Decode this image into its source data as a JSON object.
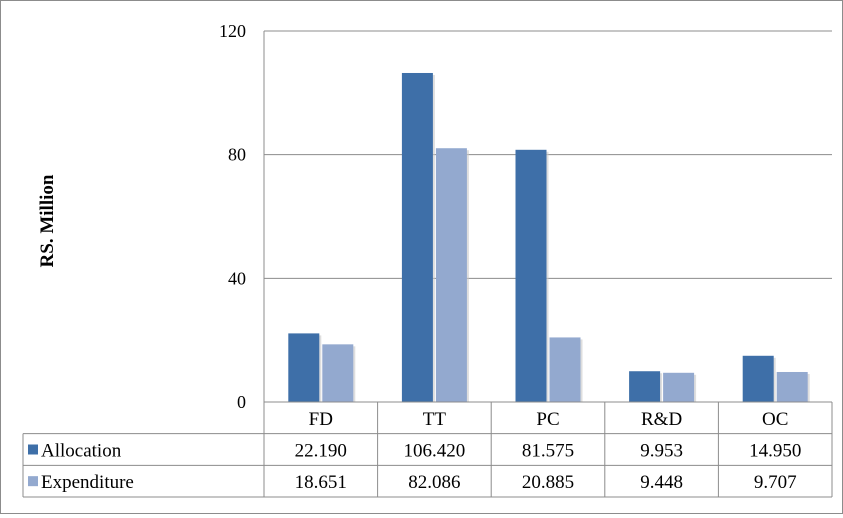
{
  "chart_data": {
    "type": "bar",
    "ylabel": "RS. Million",
    "ylim": [
      0,
      120
    ],
    "yticks": [
      0,
      40,
      80,
      120
    ],
    "grid": true,
    "legend": "table-left",
    "categories": [
      "FD",
      "TT",
      "PC",
      "R&D",
      "OC"
    ],
    "series": [
      {
        "name": "Allocation",
        "color": "#3E6FA8",
        "values": [
          22.19,
          106.42,
          81.575,
          9.953,
          14.95
        ],
        "labels": [
          "22.190",
          "106.420",
          "81.575",
          "9.953",
          "14.950"
        ]
      },
      {
        "name": "Expenditure",
        "color": "#93A9CF",
        "values": [
          18.651,
          82.086,
          20.885,
          9.448,
          9.707
        ],
        "labels": [
          "18.651",
          "82.086",
          "20.885",
          "9.448",
          "9.707"
        ]
      }
    ]
  }
}
